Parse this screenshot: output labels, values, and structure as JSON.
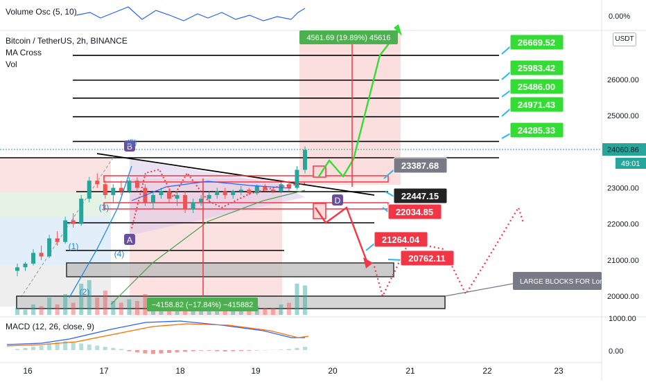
{
  "symbol_title": "Bitcoin / TetherUS, 2h, BINANCE",
  "indicators": [
    "MA Cross",
    "Vol"
  ],
  "volume_osc": {
    "title": "Volume Osc (5, 10)",
    "zero_label": "0.00%"
  },
  "macd": {
    "title": "MACD (12, 26, close, 9)",
    "axis_labels": [
      "1000.00",
      "0.00"
    ]
  },
  "currency_button": "USDT",
  "colors": {
    "up": "#26a69a",
    "down": "#ef5350",
    "green_tag": "#33dd33",
    "red_tag": "#f23645",
    "dark_tag": "#222222",
    "grey_tag": "#787b86",
    "macd_line": "#2962ff",
    "signal_line": "#ff6d00"
  },
  "chart_data": {
    "type": "bar",
    "title": "Bitcoin / TetherUS, 2h, BINANCE",
    "x_ticks": [
      "16",
      "17",
      "18",
      "19",
      "20",
      "21",
      "22",
      "23"
    ],
    "y_ticks": [
      26000,
      25000,
      24000,
      23000,
      22000,
      21000,
      20000
    ],
    "y_tick_labels": [
      "26000.00",
      "25000.00",
      "24000.00",
      "23000.00",
      "22000.00",
      "21000.00",
      "20000.00"
    ],
    "ylim": [
      19400,
      27200
    ],
    "current_price": "24060.86",
    "countdown": "49:01",
    "level_labels": [
      {
        "price": 26669.52,
        "label": "26669.52",
        "kind": "green"
      },
      {
        "price": 25983.42,
        "label": "25983.42",
        "kind": "green"
      },
      {
        "price": 25486.0,
        "label": "25486.00",
        "kind": "green"
      },
      {
        "price": 24971.43,
        "label": "24971.43",
        "kind": "green"
      },
      {
        "price": 24285.33,
        "label": "24285.33",
        "kind": "green"
      },
      {
        "price": 23387.68,
        "label": "23387.68",
        "kind": "grey"
      },
      {
        "price": 22447.15,
        "label": "22447.15",
        "kind": "dark"
      },
      {
        "price": 22034.85,
        "label": "22034.85",
        "kind": "red"
      },
      {
        "price": 21264.04,
        "label": "21264.04",
        "kind": "red"
      },
      {
        "price": 20762.11,
        "label": "20762.11",
        "kind": "red"
      }
    ],
    "measure_up": "4561.69 (19.89%) 45616",
    "measure_down": "−4158.82 (−17.84%) −415882",
    "note": "LARGE BLOCKS FOR Lon",
    "pattern_labels": {
      "A": "A",
      "B": "B",
      "D": "D",
      "one": "(1)",
      "two": "(2)",
      "three": "(3)",
      "four": "(4)",
      "five": "(5)"
    },
    "candles": [
      [
        20700,
        20900,
        20550,
        20800
      ],
      [
        20800,
        20950,
        20700,
        20900
      ],
      [
        20900,
        21300,
        20850,
        21200
      ],
      [
        21200,
        21400,
        21000,
        21100
      ],
      [
        21100,
        21700,
        21050,
        21600
      ],
      [
        21600,
        21800,
        21400,
        21500
      ],
      [
        21500,
        22200,
        21450,
        22100
      ],
      [
        22100,
        22300,
        21900,
        22000
      ],
      [
        22000,
        22800,
        21950,
        22700
      ],
      [
        22700,
        23300,
        22600,
        23200
      ],
      [
        23200,
        23400,
        23000,
        23100
      ],
      [
        23100,
        23200,
        22700,
        22800
      ],
      [
        22800,
        23100,
        22600,
        23000
      ],
      [
        23000,
        23200,
        22800,
        22900
      ],
      [
        22900,
        23300,
        22850,
        23200
      ],
      [
        23200,
        23300,
        22900,
        23000
      ],
      [
        23000,
        23100,
        22500,
        22600
      ],
      [
        22600,
        22900,
        22400,
        22800
      ],
      [
        22800,
        23000,
        22700,
        22900
      ],
      [
        22900,
        23000,
        22600,
        22700
      ],
      [
        22700,
        22900,
        22500,
        22800
      ],
      [
        22800,
        22900,
        22300,
        22400
      ],
      [
        22400,
        22700,
        22300,
        22600
      ],
      [
        22600,
        22800,
        22500,
        22700
      ],
      [
        22700,
        22900,
        22600,
        22800
      ],
      [
        22800,
        23000,
        22700,
        22900
      ],
      [
        22900,
        23000,
        22700,
        22800
      ],
      [
        22800,
        22950,
        22700,
        22900
      ],
      [
        22900,
        23050,
        22800,
        22950
      ],
      [
        22950,
        23000,
        22800,
        22850
      ],
      [
        22850,
        23100,
        22800,
        23050
      ],
      [
        23050,
        23100,
        22900,
        22950
      ],
      [
        22950,
        23000,
        22850,
        22900
      ],
      [
        22900,
        23150,
        22850,
        23100
      ],
      [
        23100,
        23200,
        22900,
        23000
      ],
      [
        23000,
        23600,
        22950,
        23500
      ],
      [
        23500,
        24150,
        23400,
        24050
      ]
    ],
    "volumes": [
      0.2,
      0.15,
      0.3,
      0.25,
      0.5,
      0.3,
      0.6,
      0.35,
      0.9,
      1.0,
      0.5,
      0.7,
      0.4,
      0.35,
      0.45,
      0.4,
      0.6,
      0.3,
      0.25,
      0.3,
      0.2,
      0.35,
      0.2,
      0.25,
      0.2,
      0.2,
      0.25,
      0.2,
      0.2,
      0.2,
      0.25,
      0.2,
      0.2,
      0.3,
      0.35,
      0.9,
      0.85
    ],
    "macd_hist": [
      0.1,
      0.2,
      0.3,
      0.4,
      0.6,
      0.7,
      0.8,
      0.7,
      0.6,
      0.5,
      0.4,
      0.3,
      0.2,
      0.1,
      -0.1,
      -0.2,
      -0.3,
      -0.35,
      -0.3,
      -0.25,
      -0.2,
      -0.15,
      -0.1,
      -0.05,
      -0.05,
      -0.1,
      -0.12,
      -0.1,
      -0.08,
      -0.05,
      -0.03,
      -0.02,
      0.02,
      0.05,
      0.1,
      0.2,
      0.3
    ],
    "legend": "none",
    "grid": false
  }
}
